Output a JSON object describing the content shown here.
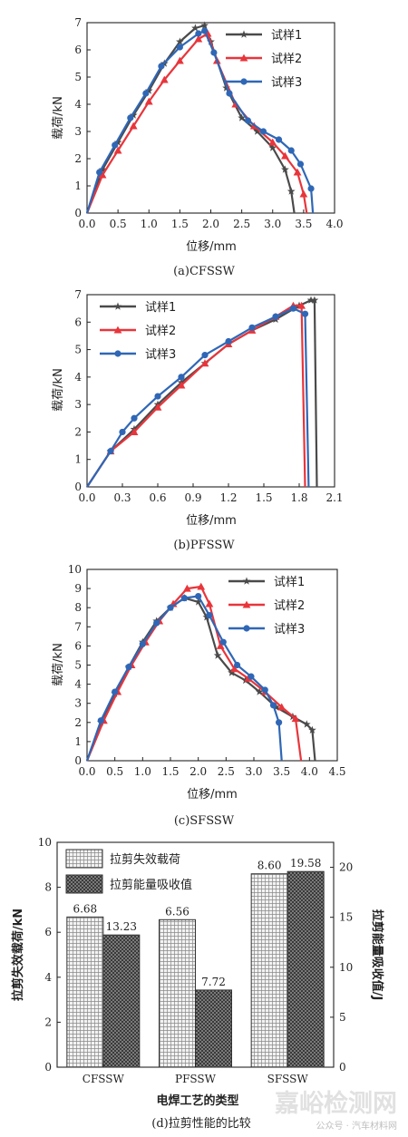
{
  "colors": {
    "s1": "#4a4a4a",
    "s2": "#e8353b",
    "s3": "#2f67b6",
    "axis": "#222222"
  },
  "chart_data": [
    {
      "type": "line",
      "caption": "(a)CFSSW",
      "xlabel": "位移/mm",
      "ylabel": "载荷/kN",
      "xlim": [
        0,
        4.0
      ],
      "ylim": [
        0,
        7
      ],
      "xticks": [
        "0.0",
        "0.5",
        "1.0",
        "1.5",
        "2.0",
        "2.5",
        "3.0",
        "3.5",
        "4.0"
      ],
      "yticks": [
        "0",
        "1",
        "2",
        "3",
        "4",
        "5",
        "6",
        "7"
      ],
      "legend_position": "top-right",
      "series": [
        {
          "name": "试样1",
          "marker": "star",
          "color": "#4a4a4a",
          "x": [
            0,
            0.25,
            0.5,
            0.75,
            1.0,
            1.25,
            1.5,
            1.75,
            1.9,
            2.0,
            2.25,
            2.5,
            2.75,
            3.0,
            3.2,
            3.3,
            3.35
          ],
          "y": [
            0,
            1.6,
            2.6,
            3.6,
            4.5,
            5.5,
            6.3,
            6.8,
            6.9,
            6.3,
            4.6,
            3.5,
            3.0,
            2.4,
            1.6,
            0.8,
            0
          ]
        },
        {
          "name": "试样2",
          "marker": "triangle",
          "color": "#e8353b",
          "x": [
            0,
            0.25,
            0.5,
            0.75,
            1.0,
            1.25,
            1.5,
            1.8,
            1.95,
            2.1,
            2.4,
            2.7,
            3.0,
            3.2,
            3.4,
            3.5,
            3.55
          ],
          "y": [
            0,
            1.4,
            2.3,
            3.2,
            4.1,
            4.9,
            5.6,
            6.4,
            6.6,
            5.6,
            4.0,
            3.2,
            2.6,
            2.1,
            1.5,
            0.7,
            0
          ]
        },
        {
          "name": "试样3",
          "marker": "circle",
          "color": "#2f67b6",
          "x": [
            0,
            0.2,
            0.45,
            0.7,
            0.95,
            1.2,
            1.5,
            1.8,
            1.9,
            2.05,
            2.3,
            2.6,
            2.85,
            3.1,
            3.3,
            3.45,
            3.62,
            3.65
          ],
          "y": [
            0,
            1.5,
            2.5,
            3.5,
            4.4,
            5.4,
            6.1,
            6.6,
            6.7,
            5.9,
            4.4,
            3.4,
            3.0,
            2.7,
            2.3,
            1.8,
            0.9,
            0
          ]
        }
      ]
    },
    {
      "type": "line",
      "caption": "(b)PFSSW",
      "xlabel": "位移/mm",
      "ylabel": "载荷/kN",
      "xlim": [
        0,
        2.1
      ],
      "ylim": [
        0,
        7
      ],
      "xticks": [
        "0.0",
        "0.3",
        "0.6",
        "0.9",
        "1.2",
        "1.5",
        "1.8",
        "2.1"
      ],
      "yticks": [
        "0",
        "1",
        "2",
        "3",
        "4",
        "5",
        "6",
        "7"
      ],
      "legend_position": "top-left",
      "series": [
        {
          "name": "试样1",
          "marker": "star",
          "color": "#4a4a4a",
          "x": [
            0,
            0.2,
            0.4,
            0.6,
            0.8,
            1.0,
            1.2,
            1.4,
            1.6,
            1.8,
            1.9,
            1.93,
            1.95
          ],
          "y": [
            0,
            1.3,
            2.1,
            3.0,
            3.8,
            4.5,
            5.2,
            5.7,
            6.1,
            6.6,
            6.8,
            6.8,
            0
          ]
        },
        {
          "name": "试样2",
          "marker": "triangle",
          "color": "#e8353b",
          "x": [
            0,
            0.2,
            0.4,
            0.6,
            0.8,
            1.0,
            1.2,
            1.4,
            1.6,
            1.75,
            1.82,
            1.85
          ],
          "y": [
            0,
            1.3,
            2.0,
            2.9,
            3.7,
            4.5,
            5.2,
            5.7,
            6.2,
            6.6,
            6.6,
            0
          ]
        },
        {
          "name": "试样3",
          "marker": "circle",
          "color": "#2f67b6",
          "x": [
            0,
            0.2,
            0.3,
            0.4,
            0.6,
            0.8,
            1.0,
            1.2,
            1.4,
            1.6,
            1.75,
            1.85,
            1.88
          ],
          "y": [
            0,
            1.3,
            2.0,
            2.5,
            3.3,
            4.0,
            4.8,
            5.3,
            5.8,
            6.2,
            6.5,
            6.3,
            0
          ]
        }
      ]
    },
    {
      "type": "line",
      "caption": "(c)SFSSW",
      "xlabel": "位移/mm",
      "ylabel": "载荷/kN",
      "xlim": [
        0,
        4.5
      ],
      "ylim": [
        0,
        10
      ],
      "xticks": [
        "0.0",
        "0.5",
        "1.0",
        "1.5",
        "2.0",
        "2.5",
        "3.0",
        "3.5",
        "4.0",
        "4.5"
      ],
      "yticks": [
        "0",
        "1",
        "2",
        "3",
        "4",
        "5",
        "6",
        "7",
        "8",
        "9",
        "10"
      ],
      "legend_position": "top-right",
      "series": [
        {
          "name": "试样1",
          "marker": "star",
          "color": "#4a4a4a",
          "x": [
            0,
            0.25,
            0.5,
            0.75,
            1.0,
            1.25,
            1.5,
            1.75,
            2.0,
            2.15,
            2.35,
            2.6,
            2.85,
            3.1,
            3.4,
            3.7,
            3.95,
            4.05,
            4.1
          ],
          "y": [
            0,
            2.0,
            3.5,
            4.9,
            6.2,
            7.3,
            8.0,
            8.5,
            8.3,
            7.5,
            5.5,
            4.6,
            4.2,
            3.6,
            2.8,
            2.3,
            1.9,
            1.6,
            0
          ]
        },
        {
          "name": "试样2",
          "marker": "triangle",
          "color": "#e8353b",
          "x": [
            0,
            0.3,
            0.55,
            0.8,
            1.05,
            1.3,
            1.55,
            1.8,
            2.05,
            2.2,
            2.4,
            2.65,
            2.9,
            3.2,
            3.5,
            3.75,
            3.85
          ],
          "y": [
            0,
            2.1,
            3.6,
            5.0,
            6.2,
            7.3,
            8.2,
            9.0,
            9.1,
            8.2,
            6.0,
            4.8,
            4.3,
            3.6,
            2.8,
            2.2,
            0
          ]
        },
        {
          "name": "试样3",
          "marker": "circle",
          "color": "#2f67b6",
          "x": [
            0,
            0.25,
            0.5,
            0.75,
            1.0,
            1.25,
            1.5,
            1.75,
            2.0,
            2.2,
            2.45,
            2.7,
            2.95,
            3.2,
            3.35,
            3.45,
            3.5
          ],
          "y": [
            0,
            2.1,
            3.6,
            4.9,
            6.1,
            7.2,
            8.0,
            8.5,
            8.6,
            7.6,
            6.2,
            5.0,
            4.4,
            3.7,
            2.9,
            2.0,
            0
          ]
        }
      ]
    },
    {
      "type": "bar",
      "caption": "(d)拉剪性能的比较",
      "xlabel": "电焊工艺的类型",
      "ylabel": "拉剪失效载荷/kN",
      "y2label": "拉剪能量吸收值/J",
      "categories": [
        "CFSSW",
        "PFSSW",
        "SFSSW"
      ],
      "ylim": [
        0,
        10
      ],
      "y2lim": [
        0,
        22.5
      ],
      "yticks": [
        "0",
        "2",
        "4",
        "6",
        "8",
        "10"
      ],
      "y2ticks": [
        "0",
        "5",
        "10",
        "15",
        "20"
      ],
      "legend_position": "top-left",
      "series": [
        {
          "name": "拉剪失效载荷",
          "axis": "left",
          "pattern": "light-grid",
          "values": [
            6.68,
            6.56,
            8.6
          ],
          "labels": [
            "6.68",
            "6.56",
            "8.60"
          ]
        },
        {
          "name": "拉剪能量吸收值",
          "axis": "right",
          "pattern": "dark-check",
          "values": [
            13.23,
            7.72,
            19.58
          ],
          "labels": [
            "13.23",
            "7.72",
            "19.58"
          ]
        }
      ]
    }
  ],
  "watermark": {
    "line1": "嘉峪检测网",
    "line2": "公众号 · 汽车材料网"
  }
}
